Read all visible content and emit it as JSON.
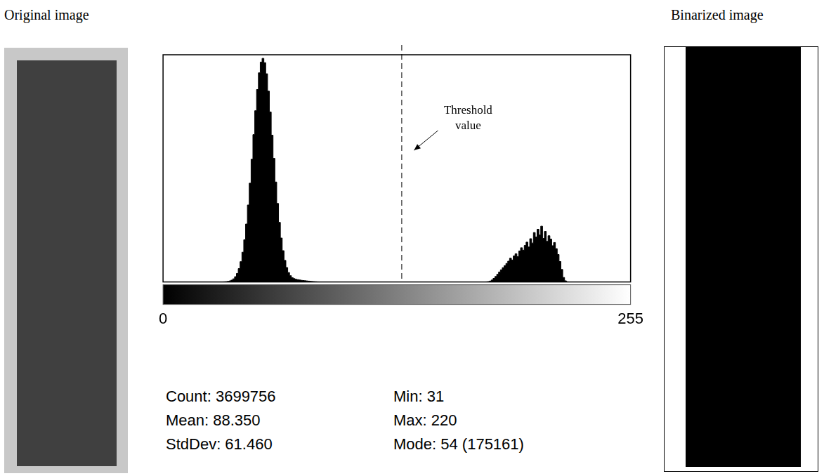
{
  "original_image": {
    "title": "Original image"
  },
  "binarized_image": {
    "title": "Binarized image"
  },
  "chart_data": {
    "type": "histogram",
    "bins": [
      31,
      32,
      33,
      34,
      35,
      36,
      37,
      38,
      39,
      40,
      41,
      42,
      43,
      44,
      45,
      46,
      47,
      48,
      49,
      50,
      51,
      52,
      53,
      54,
      55,
      56,
      57,
      58,
      59,
      60,
      61,
      62,
      63,
      64,
      65,
      66,
      67,
      68,
      69,
      70,
      71,
      72,
      73,
      74,
      75,
      76,
      77,
      78,
      79,
      80,
      81,
      82,
      83,
      84,
      85,
      86,
      87,
      88,
      89,
      90,
      176,
      177,
      178,
      179,
      180,
      181,
      182,
      183,
      184,
      185,
      186,
      187,
      188,
      189,
      190,
      191,
      192,
      193,
      194,
      195,
      196,
      197,
      198,
      199,
      200,
      201,
      202,
      203,
      204,
      205,
      206,
      207,
      208,
      209,
      210,
      211,
      212,
      213,
      214,
      215,
      216,
      217,
      218,
      219,
      220,
      221
    ],
    "values": [
      30,
      60,
      120,
      230,
      430,
      790,
      1410,
      2450,
      4120,
      6680,
      10470,
      15890,
      23310,
      33090,
      45400,
      60290,
      77400,
      96130,
      115470,
      134160,
      150760,
      163860,
      172270,
      175161,
      171800,
      163100,
      149500,
      133200,
      115000,
      96800,
      78300,
      61500,
      46700,
      34400,
      24500,
      16900,
      11300,
      7400,
      4900,
      3300,
      2600,
      2100,
      1800,
      1550,
      1300,
      1100,
      950,
      800,
      650,
      500,
      380,
      260,
      160,
      80,
      30,
      0,
      0,
      0,
      0,
      0,
      100,
      300,
      700,
      1500,
      2800,
      4300,
      6000,
      7800,
      9500,
      11200,
      12800,
      14500,
      16300,
      18600,
      17200,
      20400,
      22100,
      19800,
      24300,
      26800,
      24900,
      28600,
      31200,
      27400,
      33900,
      30500,
      38700,
      35200,
      41300,
      36800,
      43700,
      34100,
      39600,
      31800,
      36200,
      33600,
      28400,
      30900,
      26100,
      21500,
      16000,
      9800,
      3500,
      900,
      150
    ],
    "color": "#000000",
    "xlim": [
      0,
      255
    ],
    "xticks": [
      0,
      255
    ],
    "ylim": [
      0,
      178000
    ],
    "tick_labels": "x",
    "grid": false,
    "annotations": [
      {
        "text": "Threshold value",
        "x": 130,
        "line_style": "dashed"
      }
    ],
    "stats": [
      "Count: 3699756",
      "Mean: 88.350",
      "StdDev: 61.460",
      "Min: 31",
      "Max: 220",
      "Mode: 54 (175161)"
    ]
  }
}
